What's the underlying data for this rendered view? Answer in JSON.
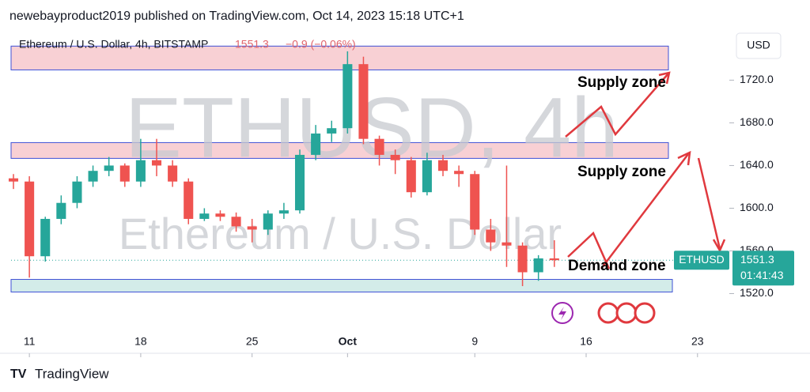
{
  "header": "newebayproduct2019 published on TradingView.com, Oct 14, 2023 15:18 UTC+1",
  "footer": "TradingView",
  "chart_data": {
    "type": "candlestick",
    "legend": {
      "symbol": "Ethereum / U.S. Dollar, 4h, BITSTAMP",
      "change": "−0.9 (−0.06%)"
    },
    "watermark": {
      "symbol": "ETHUSD, 4h",
      "name": "Ethereum / U.S. Dollar"
    },
    "currency": "USD",
    "last_price": 1551.3,
    "price_tag": {
      "symbol": "ETHUSD",
      "countdown": "01:41:43"
    },
    "up_color": "#26a69a",
    "down_color": "#ef5350",
    "ylim": [
      1490,
      1764
    ],
    "yticks": [
      {
        "value": 1520,
        "label": "1520.0"
      },
      {
        "value": 1560,
        "label": "1560.0"
      },
      {
        "value": 1600,
        "label": "1600.0"
      },
      {
        "value": 1640,
        "label": "1640.0"
      },
      {
        "value": 1680,
        "label": "1680.0"
      },
      {
        "value": 1720,
        "label": "1720.0"
      }
    ],
    "xlim": [
      9.85,
      54.9
    ],
    "xticks": [
      11,
      18,
      25,
      {
        "value": 31,
        "label": "Oct"
      },
      {
        "value": 39,
        "label": "9"
      },
      {
        "value": 46,
        "label": "16"
      },
      {
        "value": 53,
        "label": "23"
      }
    ],
    "x": [
      10,
      11,
      12,
      13,
      14,
      15,
      16,
      17,
      18,
      19,
      20,
      21,
      22,
      23,
      24,
      25,
      26,
      27,
      28,
      29,
      30,
      31,
      32,
      33,
      34,
      35,
      36,
      37,
      38,
      39,
      40,
      41,
      42,
      43,
      44
    ],
    "open": [
      1628,
      1625,
      1555,
      1590,
      1605,
      1625,
      1635,
      1640,
      1625,
      1645,
      1640,
      1625,
      1590,
      1595,
      1592,
      1583,
      1580,
      1595,
      1598,
      1650,
      1670,
      1675,
      1735,
      1665,
      1650,
      1645,
      1615,
      1645,
      1635,
      1632,
      1580,
      1568,
      1565,
      1540,
      1553
    ],
    "high": [
      1632,
      1630,
      1592,
      1612,
      1630,
      1640,
      1648,
      1642,
      1665,
      1665,
      1645,
      1628,
      1600,
      1598,
      1596,
      1590,
      1598,
      1605,
      1655,
      1678,
      1682,
      1747,
      1742,
      1668,
      1655,
      1648,
      1652,
      1650,
      1640,
      1635,
      1590,
      1640,
      1568,
      1556,
      1570
    ],
    "low": [
      1618,
      1535,
      1550,
      1585,
      1600,
      1620,
      1630,
      1620,
      1620,
      1630,
      1620,
      1585,
      1588,
      1588,
      1578,
      1568,
      1575,
      1590,
      1595,
      1645,
      1662,
      1670,
      1660,
      1640,
      1632,
      1610,
      1612,
      1630,
      1620,
      1575,
      1560,
      1545,
      1527,
      1532,
      1545
    ],
    "close": [
      1625,
      1555,
      1590,
      1605,
      1625,
      1635,
      1640,
      1625,
      1645,
      1640,
      1625,
      1590,
      1595,
      1592,
      1583,
      1580,
      1595,
      1598,
      1650,
      1670,
      1675,
      1735,
      1665,
      1650,
      1645,
      1615,
      1645,
      1635,
      1632,
      1580,
      1568,
      1565,
      1540,
      1553,
      1551.3
    ],
    "zones": [
      {
        "label": "Supply zone",
        "low": 1729.6,
        "high": 1751.9,
        "color": "#f8d0d4"
      },
      {
        "label": "Supply zone",
        "low": 1646.7,
        "high": 1661.5,
        "color": "#f8d0d4"
      },
      {
        "label": "Demand zone",
        "low": 1521.5,
        "high": 1533.3,
        "color": "#d3ece9"
      }
    ]
  }
}
